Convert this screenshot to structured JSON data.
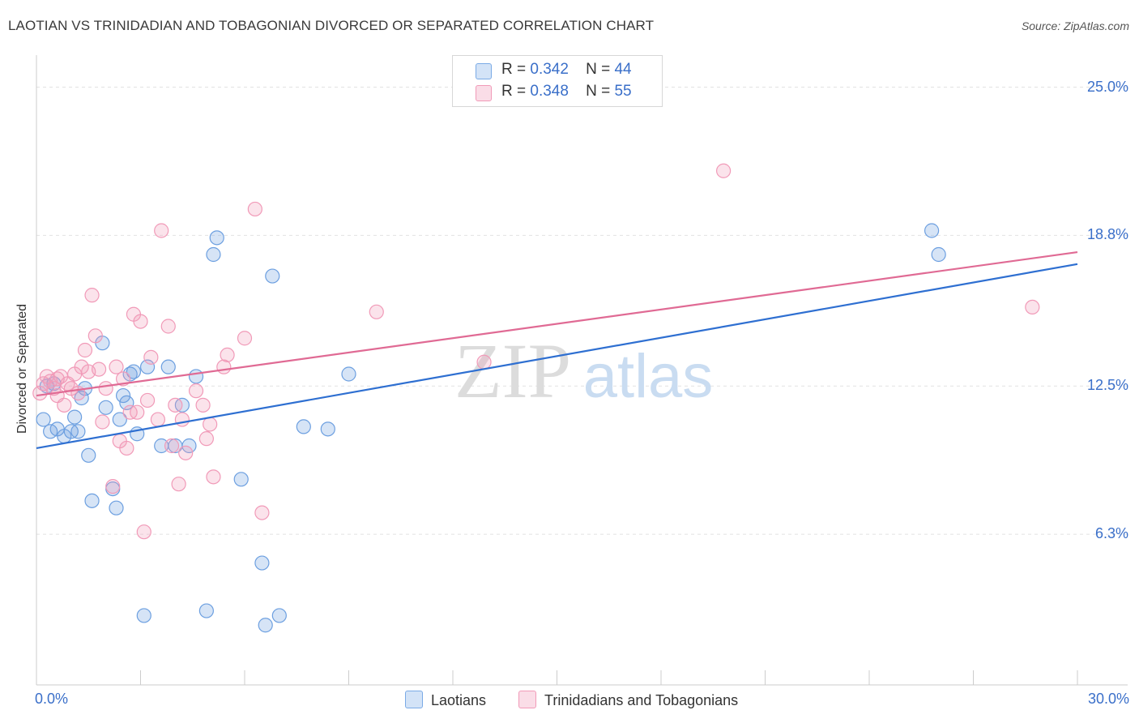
{
  "title": "LAOTIAN VS TRINIDADIAN AND TOBAGONIAN DIVORCED OR SEPARATED CORRELATION CHART",
  "source": "Source: ZipAtlas.com",
  "watermark": {
    "zip": "ZIP",
    "atlas": "atlas"
  },
  "legend": {
    "r_label": "R =",
    "n_label": "N =",
    "series": [
      {
        "name": "Laotians",
        "r": "0.342",
        "n": "44",
        "color": "#7aaae6"
      },
      {
        "name": "Trinidadians and Tobagonians",
        "r": "0.348",
        "n": "55",
        "color": "#f19ab8"
      }
    ]
  },
  "chart_data": {
    "type": "scatter",
    "title": "LAOTIAN VS TRINIDADIAN AND TOBAGONIAN DIVORCED OR SEPARATED CORRELATION CHART",
    "xlabel": "",
    "ylabel": "Divorced or Separated",
    "xlim": [
      0,
      30
    ],
    "ylim": [
      0,
      26
    ],
    "x_tick_labels": [
      {
        "value": 0,
        "label": "0.0%"
      },
      {
        "value": 30,
        "label": "30.0%"
      }
    ],
    "y_tick_labels": [
      {
        "value": 6.3,
        "label": "6.3%"
      },
      {
        "value": 12.5,
        "label": "12.5%"
      },
      {
        "value": 18.8,
        "label": "18.8%"
      },
      {
        "value": 25.0,
        "label": "25.0%"
      }
    ],
    "series": [
      {
        "name": "Laotians",
        "color": "#6c9fe0",
        "line_color": "#2e6fd1",
        "trend": {
          "x": [
            0,
            30
          ],
          "y": [
            9.9,
            17.6
          ]
        },
        "points": [
          [
            0.2,
            11.1
          ],
          [
            0.4,
            10.6
          ],
          [
            0.6,
            10.7
          ],
          [
            0.8,
            10.4
          ],
          [
            1.0,
            10.6
          ],
          [
            1.1,
            11.2
          ],
          [
            1.3,
            12.0
          ],
          [
            1.4,
            12.4
          ],
          [
            1.5,
            9.6
          ],
          [
            1.6,
            7.7
          ],
          [
            1.9,
            14.3
          ],
          [
            2.0,
            11.6
          ],
          [
            2.2,
            8.2
          ],
          [
            2.3,
            7.4
          ],
          [
            2.4,
            11.1
          ],
          [
            2.5,
            12.1
          ],
          [
            2.7,
            13.0
          ],
          [
            2.8,
            13.1
          ],
          [
            2.9,
            10.5
          ],
          [
            3.1,
            2.9
          ],
          [
            3.2,
            13.3
          ],
          [
            3.6,
            10.0
          ],
          [
            3.8,
            13.3
          ],
          [
            4.0,
            10.0
          ],
          [
            4.2,
            11.7
          ],
          [
            4.4,
            10.0
          ],
          [
            4.6,
            12.9
          ],
          [
            4.9,
            3.1
          ],
          [
            5.1,
            18.0
          ],
          [
            5.2,
            18.7
          ],
          [
            5.9,
            8.6
          ],
          [
            6.5,
            5.1
          ],
          [
            6.6,
            2.5
          ],
          [
            6.8,
            17.1
          ],
          [
            7.0,
            2.9
          ],
          [
            7.7,
            10.8
          ],
          [
            8.4,
            10.7
          ],
          [
            9.0,
            13.0
          ],
          [
            25.8,
            19.0
          ],
          [
            26.0,
            18.0
          ],
          [
            0.3,
            12.5
          ],
          [
            1.2,
            10.6
          ],
          [
            0.5,
            12.6
          ],
          [
            2.6,
            11.8
          ]
        ]
      },
      {
        "name": "Trinidadians and Tobagonians",
        "color": "#f19ab8",
        "line_color": "#e06a94",
        "trend": {
          "x": [
            0,
            30
          ],
          "y": [
            12.1,
            18.1
          ]
        },
        "points": [
          [
            0.1,
            12.2
          ],
          [
            0.2,
            12.6
          ],
          [
            0.3,
            12.9
          ],
          [
            0.4,
            12.7
          ],
          [
            0.5,
            12.4
          ],
          [
            0.6,
            12.1
          ],
          [
            0.7,
            12.9
          ],
          [
            0.8,
            11.7
          ],
          [
            0.9,
            12.6
          ],
          [
            1.0,
            12.4
          ],
          [
            1.1,
            13.0
          ],
          [
            1.2,
            12.2
          ],
          [
            1.3,
            13.3
          ],
          [
            1.4,
            14.0
          ],
          [
            1.5,
            13.1
          ],
          [
            1.6,
            16.3
          ],
          [
            1.7,
            14.6
          ],
          [
            1.8,
            13.2
          ],
          [
            1.9,
            11.0
          ],
          [
            2.0,
            12.4
          ],
          [
            2.2,
            8.3
          ],
          [
            2.3,
            13.3
          ],
          [
            2.4,
            10.2
          ],
          [
            2.5,
            12.8
          ],
          [
            2.6,
            9.9
          ],
          [
            2.7,
            11.4
          ],
          [
            2.8,
            15.5
          ],
          [
            2.9,
            11.4
          ],
          [
            3.0,
            15.2
          ],
          [
            3.1,
            6.4
          ],
          [
            3.2,
            11.9
          ],
          [
            3.3,
            13.7
          ],
          [
            3.5,
            11.1
          ],
          [
            3.6,
            19.0
          ],
          [
            3.8,
            15.0
          ],
          [
            3.9,
            10.0
          ],
          [
            4.0,
            11.7
          ],
          [
            4.1,
            8.4
          ],
          [
            4.2,
            11.1
          ],
          [
            4.3,
            9.7
          ],
          [
            4.6,
            12.3
          ],
          [
            4.8,
            11.7
          ],
          [
            4.9,
            10.3
          ],
          [
            5.0,
            10.9
          ],
          [
            5.1,
            8.7
          ],
          [
            5.4,
            13.3
          ],
          [
            5.5,
            13.8
          ],
          [
            6.0,
            14.5
          ],
          [
            6.3,
            19.9
          ],
          [
            6.5,
            7.2
          ],
          [
            9.8,
            15.6
          ],
          [
            12.9,
            13.5
          ],
          [
            19.8,
            21.5
          ],
          [
            28.7,
            15.8
          ],
          [
            0.6,
            12.8
          ]
        ]
      }
    ]
  }
}
